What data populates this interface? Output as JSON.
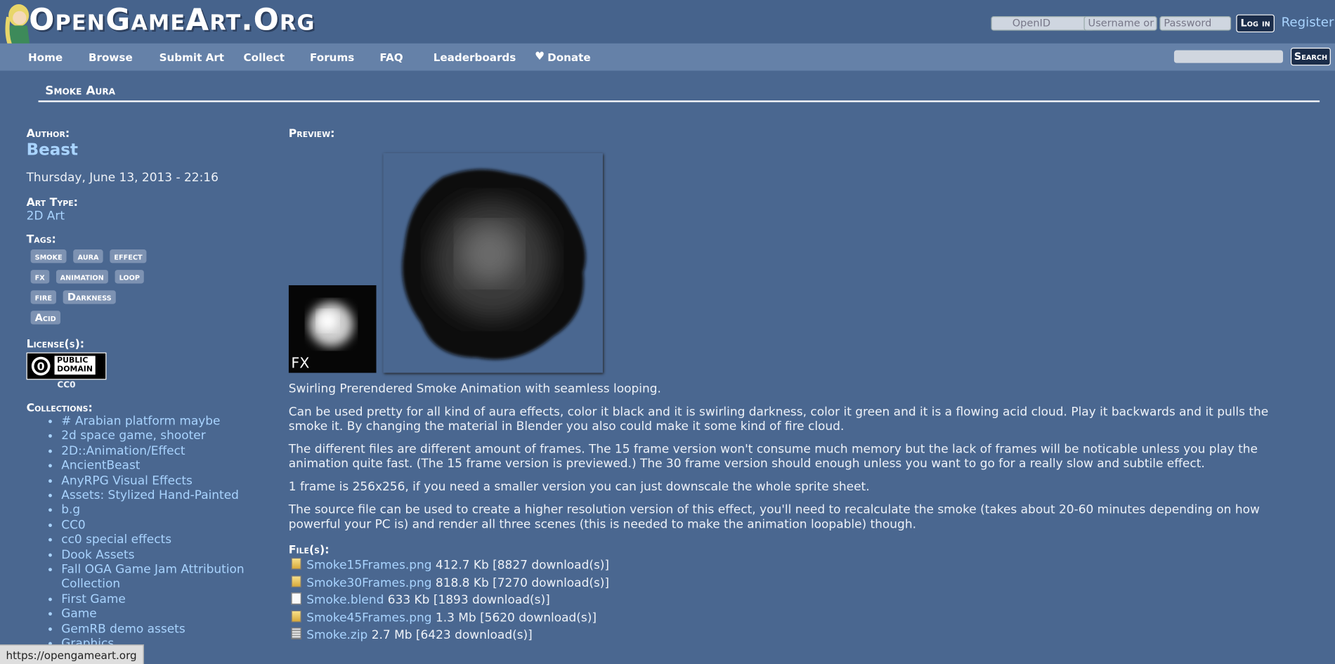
{
  "header": {
    "logo": "OpenGameArt.Org",
    "openid_placeholder": "OpenID",
    "username_placeholder": "Username or",
    "password_placeholder": "Password",
    "login": "Log in",
    "register": "Register"
  },
  "nav": {
    "items": [
      "Home",
      "Browse",
      "Submit Art",
      "Collect",
      "Forums",
      "FAQ",
      "Leaderboards",
      "Donate"
    ],
    "search": "Search"
  },
  "page": {
    "title": "Smoke Aura"
  },
  "sidebar": {
    "author_label": "Author:",
    "author": "Beast",
    "date": "Thursday, June 13, 2013 - 22:16",
    "art_type_label": "Art Type:",
    "art_type": "2D Art",
    "tags_label": "Tags:",
    "tags": [
      "smoke",
      "aura",
      "effect",
      "fx",
      "animation",
      "loop",
      "fire",
      "Darkness",
      "Acid"
    ],
    "license_label": "License(s):",
    "license_badge": [
      "PUBLIC",
      "DOMAIN"
    ],
    "license": "CC0",
    "collections_label": "Collections:",
    "collections": [
      "# Arabian platform maybe",
      "2d space game, shooter",
      "2D::Animation/Effect",
      "AncientBeast",
      "AnyRPG Visual Effects",
      "Assets: Stylized Hand-Painted",
      "b.g",
      "CC0",
      "cc0 special effects",
      "Dook Assets",
      "Fall OGA Game Jam Attribution Collection",
      "First Game",
      "Game",
      "GemRB demo assets",
      "Graphics"
    ]
  },
  "content": {
    "preview_label": "Preview:",
    "preview_fx": "FX",
    "paragraphs": [
      "Swirling Prerendered Smoke Animation with seamless looping.",
      "Can be used pretty for all kind of aura effects, color it black and it is swirling darkness, color it green and it is a flowing acid cloud. Play it backwards and it pulls the smoke it. By changing the material in Blender you also could make it some kind of fire cloud.",
      "The different files are different amount of frames. The 15 frame version won't consume much memory but the lack of frames will be noticable unless you play the animation quite fast. (The 15 frame version is previewed.) The 30 frame version should enough unless you want to go for a really slow and subtile effect.",
      "1 frame is 256x256, if you need a smaller version you can just downscale the whole sprite sheet.",
      "The source file can be used to create a higher resolution version of this effect, you'll need to recalculate the smoke (takes about 20-60 minutes depending on how powerful your PC is) and render all three scenes (this is needed to make the animation loopable) though."
    ],
    "files_label": "File(s):",
    "files": [
      {
        "name": "Smoke15Frames.png",
        "info": "412.7 Kb [8827 download(s)]"
      },
      {
        "name": "Smoke30Frames.png",
        "info": "818.8 Kb [7270 download(s)]"
      },
      {
        "name": "Smoke.blend",
        "info": "633 Kb [1893 download(s)]"
      },
      {
        "name": "Smoke45Frames.png",
        "info": "1.3 Mb [5620 download(s)]"
      },
      {
        "name": "Smoke.zip",
        "info": "2.7 Mb [6423 download(s)]"
      }
    ]
  },
  "status_bar": "https://opengameart.org"
}
